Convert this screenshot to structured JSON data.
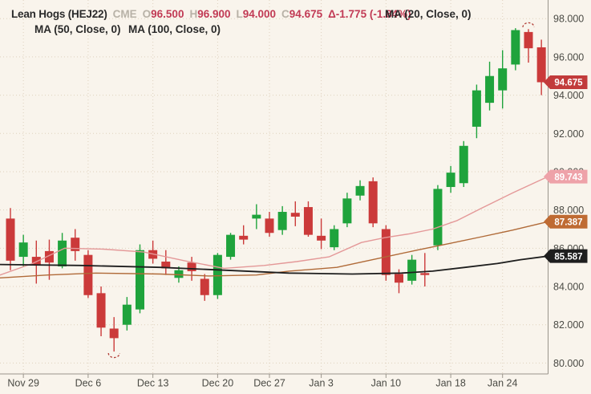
{
  "header": {
    "symbol": "Lean Hogs (HEJ22)",
    "exchange": "CME",
    "ohlc": {
      "o_label": "O",
      "o": "96.500",
      "h_label": "H",
      "h": "96.900",
      "l_label": "L",
      "l": "94.000",
      "c_label": "C",
      "c": "94.675"
    },
    "change": "Δ-1.775 (-1.84%)",
    "indicators": {
      "ma20": "MA (20, Close, 0)",
      "ma50": "MA (50, Close, 0)",
      "ma100": "MA (100, Close, 0)"
    }
  },
  "colors": {
    "background": "#f9f4ec",
    "candle_up": "#1fa33c",
    "candle_down": "#cb3a3a",
    "ma20_line": "#e49898",
    "ma50_line": "#b06a38",
    "ma100_line": "#1e1e1e",
    "value_text": "#c13a54",
    "muted_text": "#b8b2a7",
    "axis_text": "#4a4a44",
    "grid": "#d8c9b2",
    "axis_line": "#9a958c",
    "badge_last": "#c23b3b",
    "badge_ma20": "#eea2a9",
    "badge_ma50": "#bf6b33",
    "badge_ma100": "#1e1e1e",
    "marker_arc": "#b13c35"
  },
  "chart_data": {
    "type": "candlestick",
    "title": "Lean Hogs (HEJ22) CME, daily",
    "ylim": [
      79.4,
      99.0
    ],
    "y_ticks": [
      98,
      96,
      94,
      92,
      90,
      88,
      86,
      84,
      82,
      80
    ],
    "grid": "dotted",
    "x_ticks": {
      "labels": [
        "Nov 29",
        "Dec 6",
        "Dec 13",
        "Dec 20",
        "Dec 27",
        "Jan 3",
        "Jan 10",
        "Jan 18",
        "Jan 24"
      ],
      "candle_indices": [
        1,
        6,
        11,
        16,
        20,
        24,
        29,
        34,
        38
      ]
    },
    "candles": [
      {
        "d": "Nov 26",
        "o": 87.55,
        "h": 88.1,
        "l": 84.85,
        "c": 85.35
      },
      {
        "d": "Nov 29",
        "o": 85.55,
        "h": 86.7,
        "l": 85.05,
        "c": 86.3
      },
      {
        "d": "Nov 30",
        "o": 85.55,
        "h": 86.4,
        "l": 84.15,
        "c": 85.15
      },
      {
        "d": "Dec 1",
        "o": 85.85,
        "h": 86.45,
        "l": 84.35,
        "c": 85.25
      },
      {
        "d": "Dec 2",
        "o": 85.05,
        "h": 86.8,
        "l": 84.95,
        "c": 86.4
      },
      {
        "d": "Dec 3",
        "o": 86.55,
        "h": 87.0,
        "l": 85.35,
        "c": 85.85
      },
      {
        "d": "Dec 6",
        "o": 85.65,
        "h": 85.9,
        "l": 83.4,
        "c": 83.55
      },
      {
        "d": "Dec 7",
        "o": 83.65,
        "h": 84.0,
        "l": 81.4,
        "c": 81.85
      },
      {
        "d": "Dec 8",
        "o": 81.8,
        "h": 82.4,
        "l": 80.6,
        "c": 81.3
      },
      {
        "d": "Dec 9",
        "o": 82.0,
        "h": 83.45,
        "l": 81.7,
        "c": 83.05
      },
      {
        "d": "Dec 10",
        "o": 82.8,
        "h": 86.2,
        "l": 82.6,
        "c": 85.9
      },
      {
        "d": "Dec 13",
        "o": 85.9,
        "h": 86.4,
        "l": 85.2,
        "c": 85.45
      },
      {
        "d": "Dec 14",
        "o": 85.3,
        "h": 85.9,
        "l": 84.6,
        "c": 84.95
      },
      {
        "d": "Dec 15",
        "o": 84.45,
        "h": 85.05,
        "l": 84.2,
        "c": 84.85
      },
      {
        "d": "Dec 16",
        "o": 85.25,
        "h": 85.55,
        "l": 84.3,
        "c": 84.8
      },
      {
        "d": "Dec 17",
        "o": 84.4,
        "h": 84.65,
        "l": 83.25,
        "c": 83.55
      },
      {
        "d": "Dec 20",
        "o": 83.55,
        "h": 85.75,
        "l": 83.35,
        "c": 85.65
      },
      {
        "d": "Dec 21",
        "o": 85.55,
        "h": 86.8,
        "l": 85.4,
        "c": 86.7
      },
      {
        "d": "Dec 22",
        "o": 86.65,
        "h": 87.2,
        "l": 86.2,
        "c": 86.45
      },
      {
        "d": "Dec 23",
        "o": 87.55,
        "h": 88.3,
        "l": 87.0,
        "c": 87.75
      },
      {
        "d": "Dec 27",
        "o": 87.55,
        "h": 87.9,
        "l": 86.6,
        "c": 86.8
      },
      {
        "d": "Dec 28",
        "o": 86.95,
        "h": 88.2,
        "l": 86.7,
        "c": 87.9
      },
      {
        "d": "Dec 29",
        "o": 87.85,
        "h": 88.45,
        "l": 87.15,
        "c": 87.65
      },
      {
        "d": "Dec 30",
        "o": 88.15,
        "h": 88.45,
        "l": 86.6,
        "c": 86.7
      },
      {
        "d": "Jan 3",
        "o": 86.65,
        "h": 87.55,
        "l": 85.95,
        "c": 86.4
      },
      {
        "d": "Jan 4",
        "o": 86.05,
        "h": 87.2,
        "l": 85.9,
        "c": 87.0
      },
      {
        "d": "Jan 5",
        "o": 87.3,
        "h": 88.9,
        "l": 87.1,
        "c": 88.6
      },
      {
        "d": "Jan 6",
        "o": 88.75,
        "h": 89.55,
        "l": 88.5,
        "c": 89.25
      },
      {
        "d": "Jan 7",
        "o": 89.5,
        "h": 89.7,
        "l": 87.1,
        "c": 87.3
      },
      {
        "d": "Jan 10",
        "o": 87.0,
        "h": 87.2,
        "l": 84.3,
        "c": 84.6
      },
      {
        "d": "Jan 11",
        "o": 84.65,
        "h": 84.9,
        "l": 83.65,
        "c": 84.2
      },
      {
        "d": "Jan 12",
        "o": 84.3,
        "h": 85.65,
        "l": 84.1,
        "c": 85.4
      },
      {
        "d": "Jan 13",
        "o": 84.7,
        "h": 85.75,
        "l": 84.0,
        "c": 84.6
      },
      {
        "d": "Jan 14",
        "o": 86.15,
        "h": 89.3,
        "l": 85.9,
        "c": 89.1
      },
      {
        "d": "Jan 18",
        "o": 89.2,
        "h": 90.3,
        "l": 88.9,
        "c": 89.95
      },
      {
        "d": "Jan 19",
        "o": 89.4,
        "h": 91.6,
        "l": 89.2,
        "c": 91.35
      },
      {
        "d": "Jan 20",
        "o": 92.35,
        "h": 94.55,
        "l": 91.75,
        "c": 94.25
      },
      {
        "d": "Jan 21",
        "o": 93.6,
        "h": 95.75,
        "l": 93.2,
        "c": 95.0
      },
      {
        "d": "Jan 24",
        "o": 94.25,
        "h": 96.35,
        "l": 93.3,
        "c": 95.4
      },
      {
        "d": "Jan 25",
        "o": 95.6,
        "h": 97.5,
        "l": 95.3,
        "c": 97.4
      },
      {
        "d": "Jan 26",
        "o": 97.3,
        "h": 97.45,
        "l": 95.7,
        "c": 96.45
      },
      {
        "d": "Jan 27",
        "o": 96.5,
        "h": 96.9,
        "l": 94.0,
        "c": 94.675
      }
    ],
    "series": [
      {
        "name": "MA 20",
        "color": "#e49898",
        "last_value": 89.743,
        "points": [
          [
            -0.8,
            84.6
          ],
          [
            1.7,
            85.2
          ],
          [
            4.2,
            86.0
          ],
          [
            7.2,
            85.95
          ],
          [
            10.3,
            85.8
          ],
          [
            13.4,
            85.35
          ],
          [
            16.5,
            84.95
          ],
          [
            19.6,
            85.1
          ],
          [
            22.1,
            85.3
          ],
          [
            24.6,
            85.55
          ],
          [
            27.1,
            86.3
          ],
          [
            28.9,
            86.55
          ],
          [
            30.8,
            86.75
          ],
          [
            32.6,
            87.0
          ],
          [
            34.5,
            87.45
          ],
          [
            36.4,
            88.1
          ],
          [
            38.8,
            88.9
          ],
          [
            41.5,
            89.743
          ]
        ]
      },
      {
        "name": "MA 50",
        "color": "#b06a38",
        "last_value": 87.387,
        "points": [
          [
            -0.8,
            84.45
          ],
          [
            2.9,
            84.6
          ],
          [
            6.6,
            84.7
          ],
          [
            11.6,
            84.65
          ],
          [
            15.3,
            84.55
          ],
          [
            19.0,
            84.6
          ],
          [
            21.5,
            84.8
          ],
          [
            25.2,
            85.0
          ],
          [
            28.3,
            85.45
          ],
          [
            31.4,
            85.9
          ],
          [
            33.9,
            86.25
          ],
          [
            36.4,
            86.6
          ],
          [
            38.8,
            86.95
          ],
          [
            41.5,
            87.387
          ]
        ]
      },
      {
        "name": "MA 100",
        "color": "#1e1e1e",
        "last_value": 85.587,
        "points": [
          [
            -0.8,
            85.15
          ],
          [
            5.4,
            85.1
          ],
          [
            11.6,
            85.0
          ],
          [
            16.5,
            84.85
          ],
          [
            21.5,
            84.7
          ],
          [
            26.4,
            84.65
          ],
          [
            30.2,
            84.7
          ],
          [
            32.6,
            84.8
          ],
          [
            35.1,
            85.0
          ],
          [
            37.6,
            85.2
          ],
          [
            39.4,
            85.4
          ],
          [
            41.5,
            85.587
          ]
        ]
      }
    ],
    "markers": [
      {
        "type": "arc-low",
        "candle_index": 8,
        "price": 80.35
      },
      {
        "type": "arc-high",
        "candle_index": 40,
        "price": 97.72
      }
    ],
    "badges": [
      {
        "label": "94.675",
        "price": 94.675,
        "bg": "#c23b3b",
        "fg": "#ffffff",
        "name": "last-price-badge"
      },
      {
        "label": "89.743",
        "price": 89.743,
        "bg": "#eea2a9",
        "fg": "#ffffff",
        "name": "ma20-value-badge"
      },
      {
        "label": "87.387",
        "price": 87.387,
        "bg": "#bf6b33",
        "fg": "#ffffff",
        "name": "ma50-value-badge"
      },
      {
        "label": "85.587",
        "price": 85.587,
        "bg": "#1e1e1e",
        "fg": "#ffffff",
        "name": "ma100-value-badge"
      }
    ]
  }
}
